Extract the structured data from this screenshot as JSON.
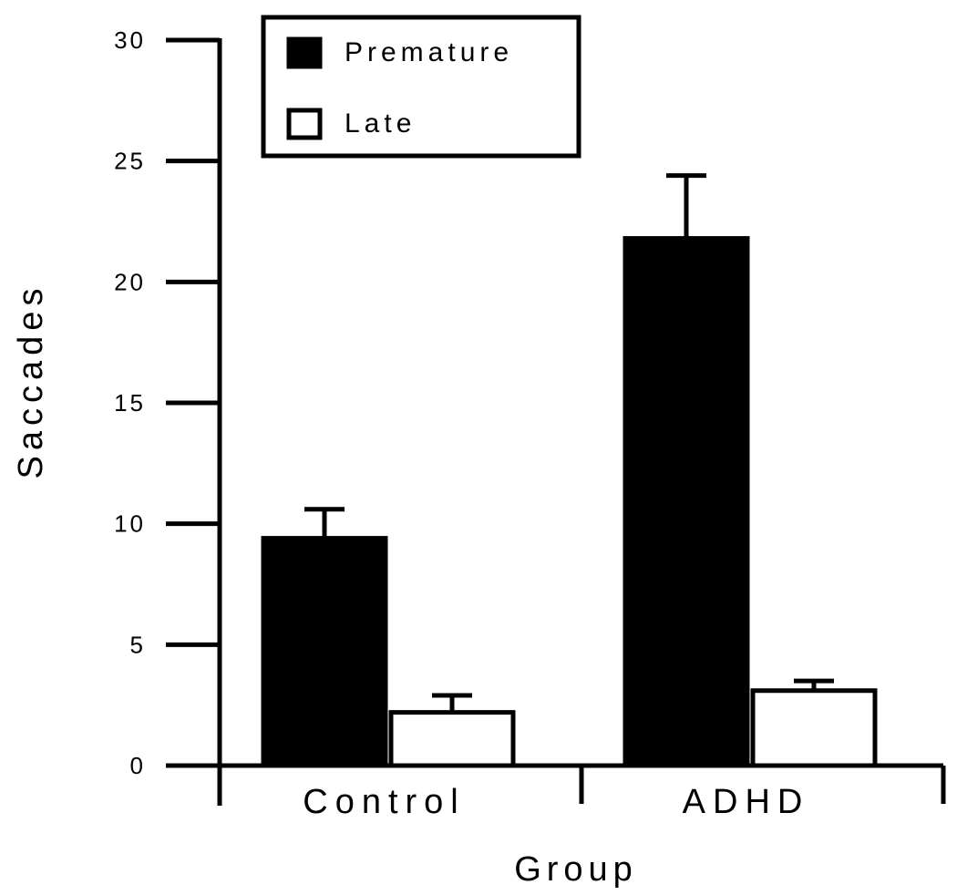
{
  "chart_data": {
    "type": "bar",
    "categories": [
      "Control",
      "ADHD"
    ],
    "series": [
      {
        "name": "Premature",
        "values": [
          9.4,
          21.8
        ],
        "errors": [
          1.2,
          2.6
        ],
        "color": "#000000"
      },
      {
        "name": "Late",
        "values": [
          2.2,
          3.1
        ],
        "errors": [
          0.7,
          0.4
        ],
        "color": "#ffffff"
      }
    ],
    "xlabel": "Group",
    "ylabel": "Saccades",
    "ylim": [
      0,
      30
    ],
    "yticks": [
      0,
      5,
      10,
      15,
      20,
      25,
      30
    ],
    "legend": "top-left",
    "grid": false
  }
}
